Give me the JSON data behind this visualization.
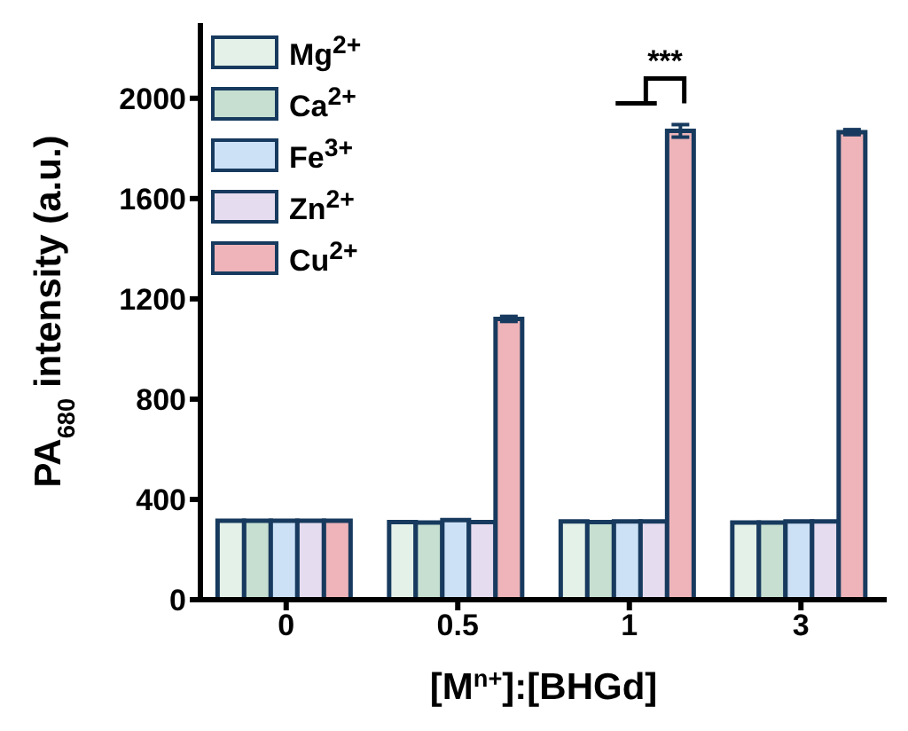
{
  "chart_data": {
    "type": "bar",
    "xlabel": "[M$^{n+}$]:[BHGd]",
    "ylabel": "PA$_{680}$ intensity (a.u.)",
    "categories": [
      "0",
      "0.5",
      "1",
      "3"
    ],
    "series": [
      {
        "name": "Mg$^{2+}$",
        "color": "#e4f1e8",
        "values": [
          315,
          310,
          312,
          308
        ]
      },
      {
        "name": "Ca$^{2+}$",
        "color": "#c6dfd0",
        "values": [
          315,
          308,
          310,
          308
        ]
      },
      {
        "name": "Fe$^{3+}$",
        "color": "#cde1f6",
        "values": [
          315,
          318,
          312,
          312
        ]
      },
      {
        "name": "Zn$^{2+}$",
        "color": "#e6dcef",
        "values": [
          315,
          310,
          312,
          312
        ]
      },
      {
        "name": "Cu$^{2+}$",
        "color": "#eeb4b9",
        "values": [
          315,
          1120,
          1870,
          1865
        ],
        "errors": [
          null,
          10,
          25,
          10
        ]
      }
    ],
    "ylim": [
      0,
      2300
    ],
    "yticks": [
      0,
      400,
      800,
      1200,
      1600,
      2000
    ],
    "legend": "top left",
    "annotations": [
      "***"
    ]
  }
}
